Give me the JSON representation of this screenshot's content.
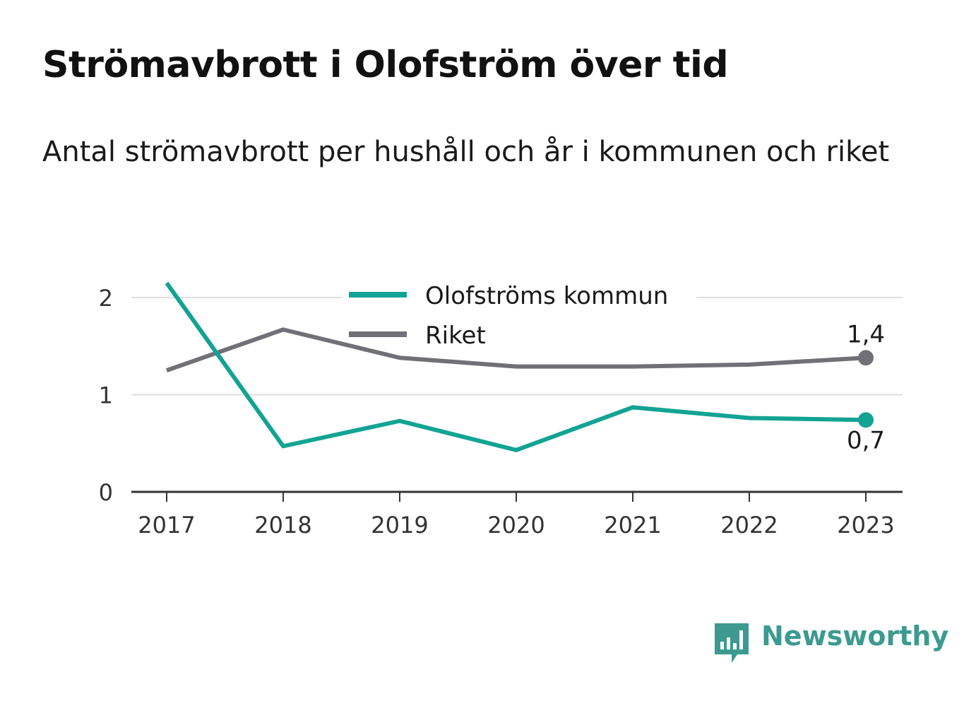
{
  "header": {
    "title": "Strömavbrott i Olofström över tid",
    "subtitle": "Antal strömavbrott per hushåll och år i kommunen och riket"
  },
  "brand": {
    "name": "Newsworthy",
    "icon": "newsworthy-logo-icon",
    "color": "#3c9a90"
  },
  "chart_data": {
    "type": "line",
    "x": [
      "2017",
      "2018",
      "2019",
      "2020",
      "2021",
      "2022",
      "2023"
    ],
    "yticks": [
      "0",
      "1",
      "2"
    ],
    "ylim": [
      0,
      2.2
    ],
    "grid": true,
    "legend_position": "top-center",
    "series": [
      {
        "name": "Olofströms kommun",
        "color": "#12a394",
        "values": [
          2.15,
          0.47,
          0.73,
          0.43,
          0.87,
          0.76,
          0.74
        ],
        "end_label": "0,7"
      },
      {
        "name": "Riket",
        "color": "#707076",
        "values": [
          1.25,
          1.67,
          1.38,
          1.29,
          1.29,
          1.31,
          1.38
        ],
        "end_label": "1,4"
      }
    ]
  }
}
